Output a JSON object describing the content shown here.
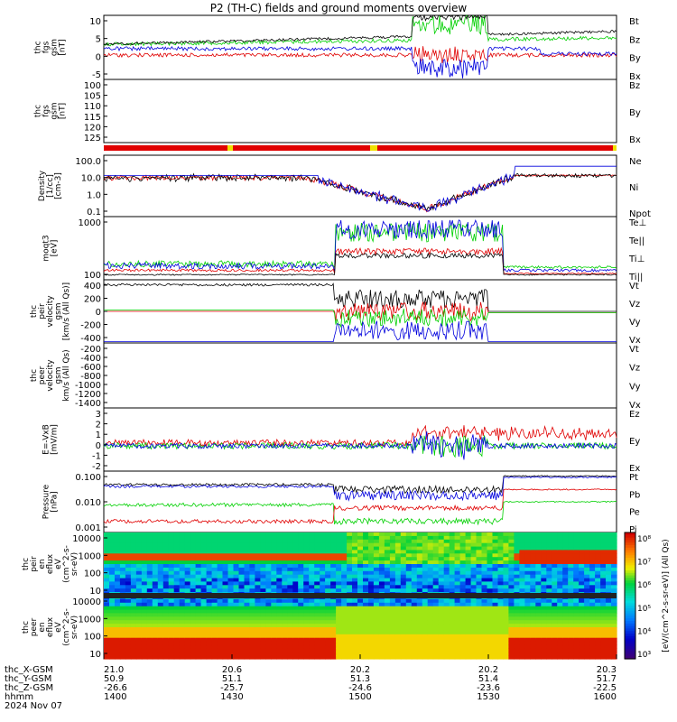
{
  "title": "P2 (TH-C) fields and ground moments overview",
  "colors": {
    "black": "#000000",
    "red": "#e00000",
    "green": "#00d000",
    "blue": "#0000dd",
    "yellow": "#f0e000"
  },
  "panels": [
    {
      "id": "fgs1",
      "ylabel": [
        "thc",
        "fgs",
        "gsm",
        "[nT]"
      ],
      "ticks": [
        "10",
        "5",
        "0",
        "-5"
      ],
      "legend": [
        {
          "t": "Bt",
          "c": "black"
        },
        {
          "t": "Bz",
          "c": "red"
        },
        {
          "t": "By",
          "c": "green"
        },
        {
          "t": "Bx",
          "c": "blue"
        }
      ]
    },
    {
      "id": "fgs2",
      "ylabel": [
        "thc",
        "fgs",
        "gsm",
        "[nT]"
      ],
      "ticks": [
        "100",
        "105",
        "110",
        "115",
        "120",
        "125"
      ],
      "legend": [
        {
          "t": "Bz",
          "c": "red"
        },
        {
          "t": "By",
          "c": "green"
        },
        {
          "t": "Bx",
          "c": "blue"
        }
      ]
    },
    {
      "id": "dens",
      "ylabel": [
        "Density",
        "[1/cc]",
        "[cm-3]"
      ],
      "ticks": [
        "100.0",
        "10.0",
        "1.0",
        "0.1"
      ],
      "legend": [
        {
          "t": "Ne",
          "c": "red"
        },
        {
          "t": "Ni",
          "c": "black"
        },
        {
          "t": "Npot",
          "c": "blue"
        }
      ]
    },
    {
      "id": "temp",
      "ylabel": [
        "moqt3",
        "[eV]"
      ],
      "ticks": [
        "1000",
        "100"
      ],
      "legend": [
        {
          "t": "Te⊥",
          "c": "red"
        },
        {
          "t": "Te||",
          "c": "black"
        },
        {
          "t": "Ti⊥",
          "c": "green"
        },
        {
          "t": "Ti||",
          "c": "green"
        }
      ]
    },
    {
      "id": "vi",
      "ylabel": [
        "thc",
        "peir",
        "velocity",
        "gsm",
        "[km/s (All Qs)]"
      ],
      "ticks": [
        "400",
        "200",
        "0",
        "-200",
        "-400"
      ],
      "legend": [
        {
          "t": "Vt",
          "c": "black"
        },
        {
          "t": "Vz",
          "c": "red"
        },
        {
          "t": "Vy",
          "c": "green"
        },
        {
          "t": "Vx",
          "c": "blue"
        }
      ]
    },
    {
      "id": "ve",
      "ylabel": [
        "thc",
        "peer",
        "velocity",
        "gsm",
        "km/s (All Qs)"
      ],
      "ticks": [
        "-200",
        "-400",
        "-600",
        "-800",
        "-1000",
        "-1200",
        "-1400"
      ],
      "legend": [
        {
          "t": "Vt",
          "c": "black"
        },
        {
          "t": "Vz",
          "c": "red"
        },
        {
          "t": "Vy",
          "c": "green"
        },
        {
          "t": "Vx",
          "c": "blue"
        }
      ]
    },
    {
      "id": "efield",
      "ylabel": [
        "E=-VxB",
        "[mV/m]"
      ],
      "ticks": [
        "3",
        "2",
        "1",
        "0",
        "-1",
        "-2"
      ],
      "legend": [
        {
          "t": "Ez",
          "c": "red"
        },
        {
          "t": "Ey",
          "c": "green"
        },
        {
          "t": "Ex",
          "c": "blue"
        }
      ]
    },
    {
      "id": "press",
      "ylabel": [
        "Pressure",
        "[nPa]"
      ],
      "ticks": [
        "0.100",
        "0.010",
        "0.001"
      ],
      "legend": [
        {
          "t": "Pt",
          "c": "black"
        },
        {
          "t": "Pb",
          "c": "red"
        },
        {
          "t": "Pe",
          "c": "green"
        },
        {
          "t": "Pi",
          "c": "blue"
        }
      ]
    },
    {
      "id": "spec_i",
      "ylabel": [
        "thc",
        "peir",
        "en",
        "eflux",
        "eV",
        "(cm^2-s-",
        "sr-eV)"
      ],
      "ticks": [
        "10000",
        "1000",
        "100",
        "10"
      ],
      "legend": []
    },
    {
      "id": "spec_e",
      "ylabel": [
        "thc",
        "peer",
        "en",
        "eflux",
        "eV",
        "(cm^2-s-",
        "sr-eV)"
      ],
      "ticks": [
        "10000",
        "1000",
        "100",
        "10"
      ],
      "legend": []
    }
  ],
  "colorbar_ticks": [
    "10⁸",
    "10⁷",
    "10⁶",
    "10⁵",
    "10⁴",
    "10³"
  ],
  "colorbar_label": "[eV/(cm^2-s-sr-eV)] (All Qs)",
  "xaxis": {
    "rows": [
      {
        "label": "thc_X-GSM",
        "values": [
          "21.0",
          "20.6",
          "20.2",
          "20.2",
          "20.3"
        ]
      },
      {
        "label": "thc_Y-GSM",
        "values": [
          "50.9",
          "51.1",
          "51.3",
          "51.4",
          "51.7"
        ]
      },
      {
        "label": "thc_Z-GSM",
        "values": [
          "-26.6",
          "-25.7",
          "-24.6",
          "-23.6",
          "-22.5"
        ]
      },
      {
        "label": "hhmm",
        "values": [
          "1400",
          "1430",
          "1500",
          "1530",
          "1600"
        ]
      }
    ],
    "date": "2024 Nov 07"
  },
  "chart_data": {
    "type": "line",
    "title": "P2 (TH-C) fields and ground moments overview",
    "x": [
      "1400",
      "1430",
      "1500",
      "1530",
      "1600"
    ],
    "series": [
      {
        "name": "Bt",
        "values": [
          1.8,
          2.5,
          4.0,
          3.5,
          5.5
        ]
      },
      {
        "name": "Bz",
        "values": [
          -0.5,
          0.0,
          0.5,
          -1.0,
          -2.0
        ]
      },
      {
        "name": "By",
        "values": [
          1.5,
          2.0,
          3.0,
          2.0,
          5.0
        ]
      },
      {
        "name": "Bx",
        "values": [
          0.3,
          0.5,
          1.5,
          0.5,
          -1.0
        ]
      },
      {
        "name": "Ne",
        "values": [
          10,
          9,
          0.5,
          2,
          12
        ]
      },
      {
        "name": "Vt",
        "values": [
          380,
          390,
          150,
          350,
          0
        ]
      },
      {
        "name": "Pt",
        "values": [
          0.05,
          0.04,
          0.02,
          0.05,
          0.1
        ]
      }
    ],
    "ylim_fgs": [
      -8,
      11
    ],
    "ylim_density": [
      0.1,
      100
    ],
    "ylim_velocity": [
      -400,
      400
    ]
  }
}
